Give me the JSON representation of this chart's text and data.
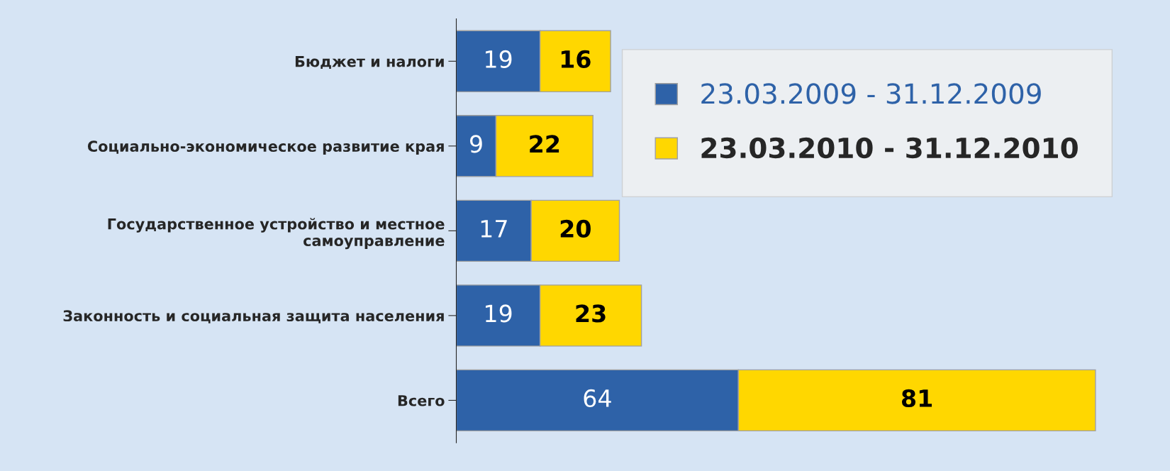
{
  "chart_data": {
    "type": "bar",
    "orientation": "horizontal",
    "stacked": true,
    "data_labels": true,
    "legend": "top right",
    "grid": false,
    "categories": [
      "Бюджет и налоги",
      "Социально-экономическое развитие края",
      "Государственное устройство и местное\nсамоуправление",
      "Законность и социальная защита населения",
      "Всего"
    ],
    "series": [
      {
        "name": "23.03.2009 - 31.12.2009",
        "color": "#2e62a8",
        "values": [
          19,
          9,
          17,
          19,
          64
        ]
      },
      {
        "name": "23.03.2010 - 31.12.2010",
        "color": "#ffd700",
        "values": [
          16,
          22,
          20,
          23,
          81
        ]
      }
    ]
  }
}
